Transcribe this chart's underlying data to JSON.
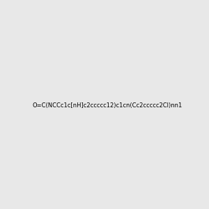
{
  "smiles": "O=C(NCCc1c[nH]c2ccccc12)c1cn(Cc2ccccc2Cl)nn1",
  "title": "",
  "background_color": "#e8e8e8",
  "figsize": [
    3.0,
    3.0
  ],
  "dpi": 100
}
